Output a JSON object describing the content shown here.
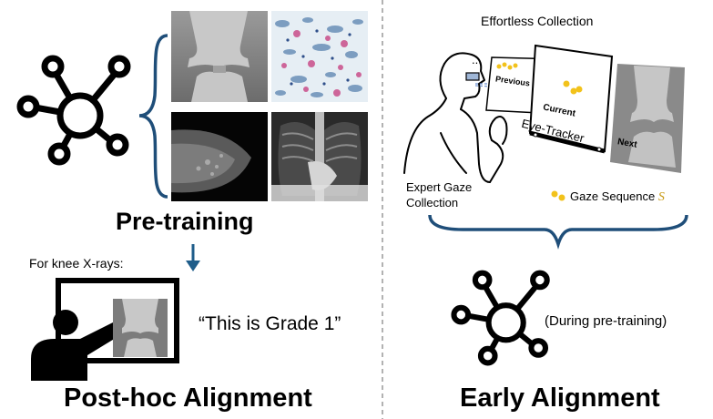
{
  "left": {
    "pretraining_title": "Pre-training",
    "caption_for": "For knee X-rays:",
    "quote": "“This is Grade 1”",
    "posthoc_title": "Post-hoc Alignment"
  },
  "right": {
    "effortless_title": "Effortless Collection",
    "dots": "...",
    "previous": "Previous",
    "current": "Current",
    "next": "Next",
    "eye_tracker": "Eye-Tracker",
    "expert_line1": "Expert Gaze",
    "expert_line2": "Collection",
    "gaze_sequence": "Gaze Sequence",
    "gaze_symbol": "S",
    "during": "(During pre-training)",
    "early_title": "Early Alignment"
  },
  "colors": {
    "brace": "#1f4e79",
    "arrow": "#1f5d8a",
    "gaze_dot": "#f2c21b",
    "gaze_line": "#6a8fd0",
    "divider": "#888888"
  }
}
